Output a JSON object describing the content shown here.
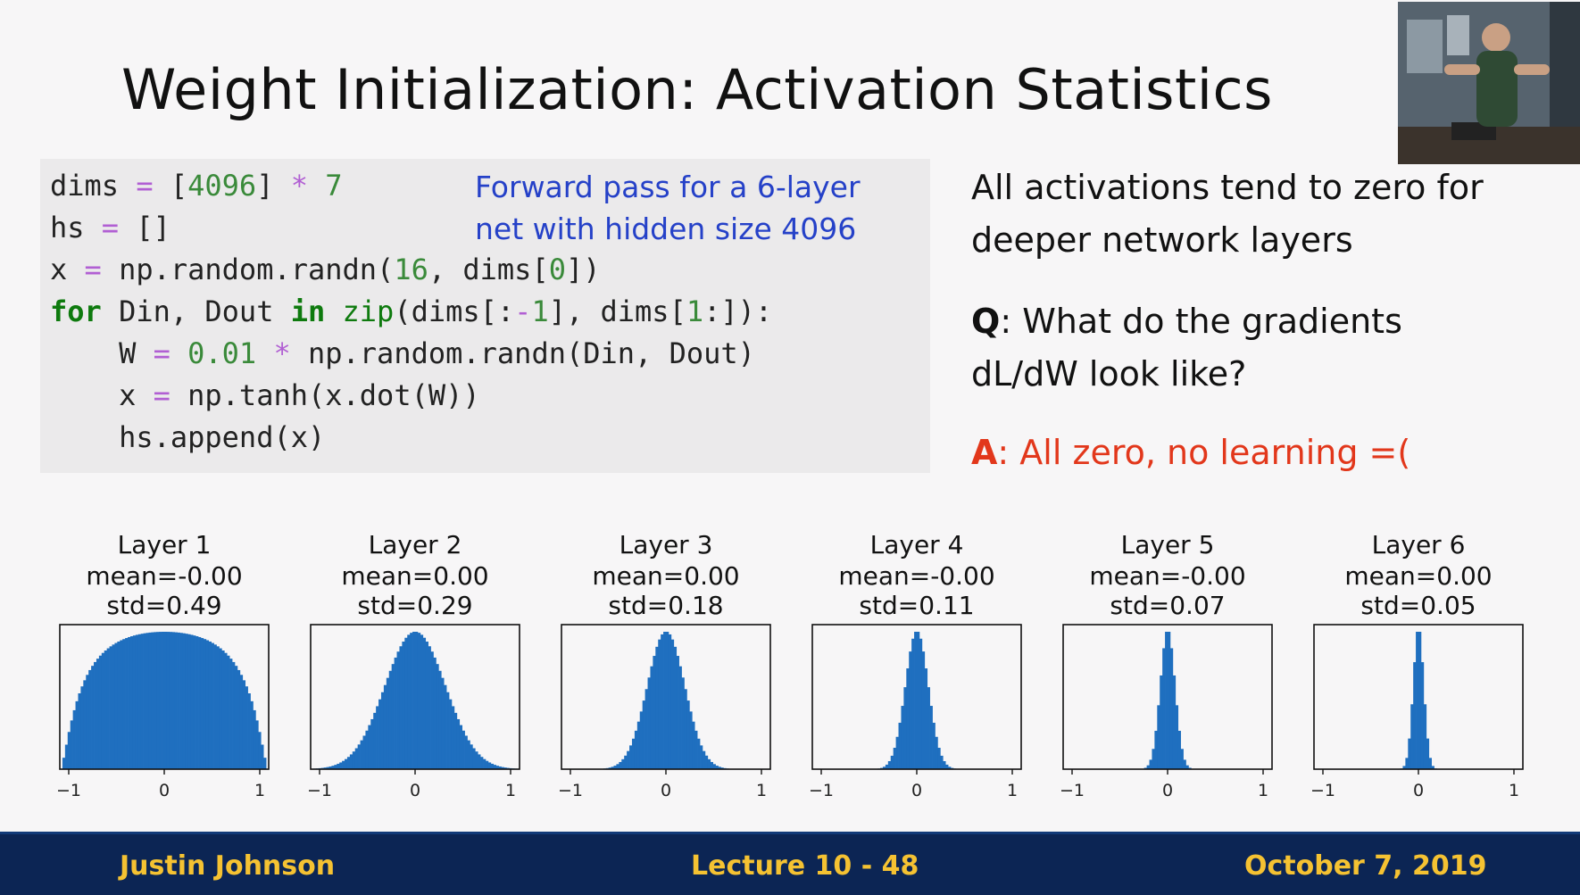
{
  "title": "Weight Initialization: Activation Statistics",
  "code": {
    "comment_line1": "Forward pass for a 6-layer",
    "comment_line2": "net with hidden size 4096"
  },
  "side": {
    "line1": "All activations tend to zero for",
    "line2": "deeper network layers",
    "q_prefix": "Q",
    "q_line1": ": What do the gradients",
    "q_line2": "dL/dW look like?",
    "a_prefix": "A",
    "a_text": ": All zero, no learning =("
  },
  "chart_data": {
    "type": "bar",
    "xlim": [
      -1,
      1
    ],
    "x_ticks": [
      "−1",
      "0",
      "1"
    ],
    "panels": [
      {
        "layer": "Layer 1",
        "mean": "mean=-0.00",
        "std": "std=0.49",
        "std_value": 0.49
      },
      {
        "layer": "Layer 2",
        "mean": "mean=0.00",
        "std": "std=0.29",
        "std_value": 0.29
      },
      {
        "layer": "Layer 3",
        "mean": "mean=0.00",
        "std": "std=0.18",
        "std_value": 0.18
      },
      {
        "layer": "Layer 4",
        "mean": "mean=-0.00",
        "std": "std=0.11",
        "std_value": 0.11
      },
      {
        "layer": "Layer 5",
        "mean": "mean=-0.00",
        "std": "std=0.07",
        "std_value": 0.07
      },
      {
        "layer": "Layer 6",
        "mean": "mean=0.00",
        "std": "std=0.05",
        "std_value": 0.05
      }
    ],
    "bar_color": "#1f6fbf"
  },
  "footer": {
    "author": "Justin Johnson",
    "lecture": "Lecture 10 - 48",
    "date": "October 7, 2019"
  }
}
